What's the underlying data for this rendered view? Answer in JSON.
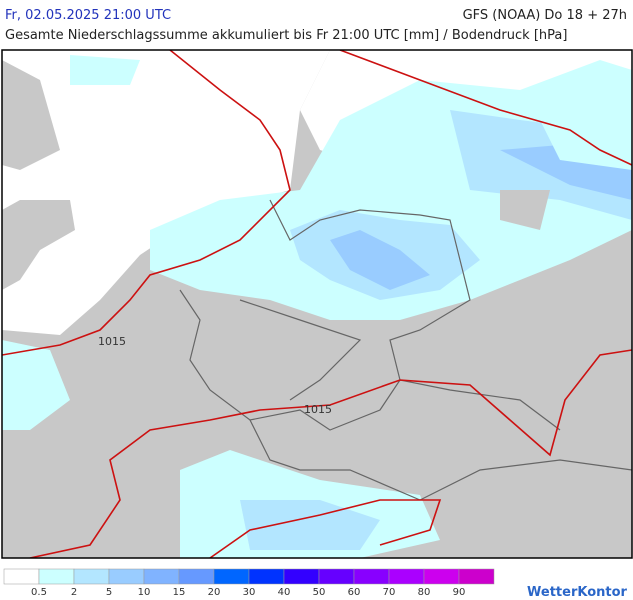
{
  "header": {
    "datetime": "Fr, 02.05.2025 21:00 UTC",
    "model": "GFS (NOAA) Do 18 + 27h",
    "subtitle": "Gesamte Niederschlagssumme akkumuliert bis Fr 21:00 UTC [mm] / Bodendruck [hPa]"
  },
  "map": {
    "isobar_labels": [
      "1015",
      "1015"
    ]
  },
  "legend": {
    "thresholds": [
      0.5,
      2,
      5,
      10,
      15,
      20,
      30,
      40,
      50,
      60,
      70,
      80,
      90
    ],
    "colors": [
      "#ffffff",
      "#ccffff",
      "#b3e6ff",
      "#99ccff",
      "#80b3ff",
      "#6699ff",
      "#0066ff",
      "#0033ff",
      "#3300ff",
      "#6600ff",
      "#8800ff",
      "#aa00ff",
      "#cc00ee",
      "#cc00cc"
    ]
  },
  "brand": "WetterKontor"
}
